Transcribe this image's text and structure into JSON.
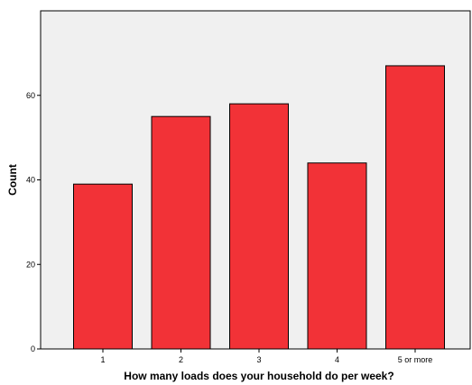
{
  "chart_data": {
    "type": "bar",
    "title": "",
    "xlabel": "How many loads does your household do per week?",
    "ylabel": "Count",
    "categories": [
      "1",
      "2",
      "3",
      "4",
      "5 or more"
    ],
    "values": [
      39,
      55,
      58,
      44,
      67
    ],
    "ylim": [
      0,
      80
    ],
    "yticks": [
      0,
      20,
      40,
      60
    ],
    "grid": false,
    "legend": "none",
    "colors": {
      "bar_fill": "#f23237",
      "bar_stroke": "#000000",
      "plot_background": "#f0f0f0"
    }
  }
}
